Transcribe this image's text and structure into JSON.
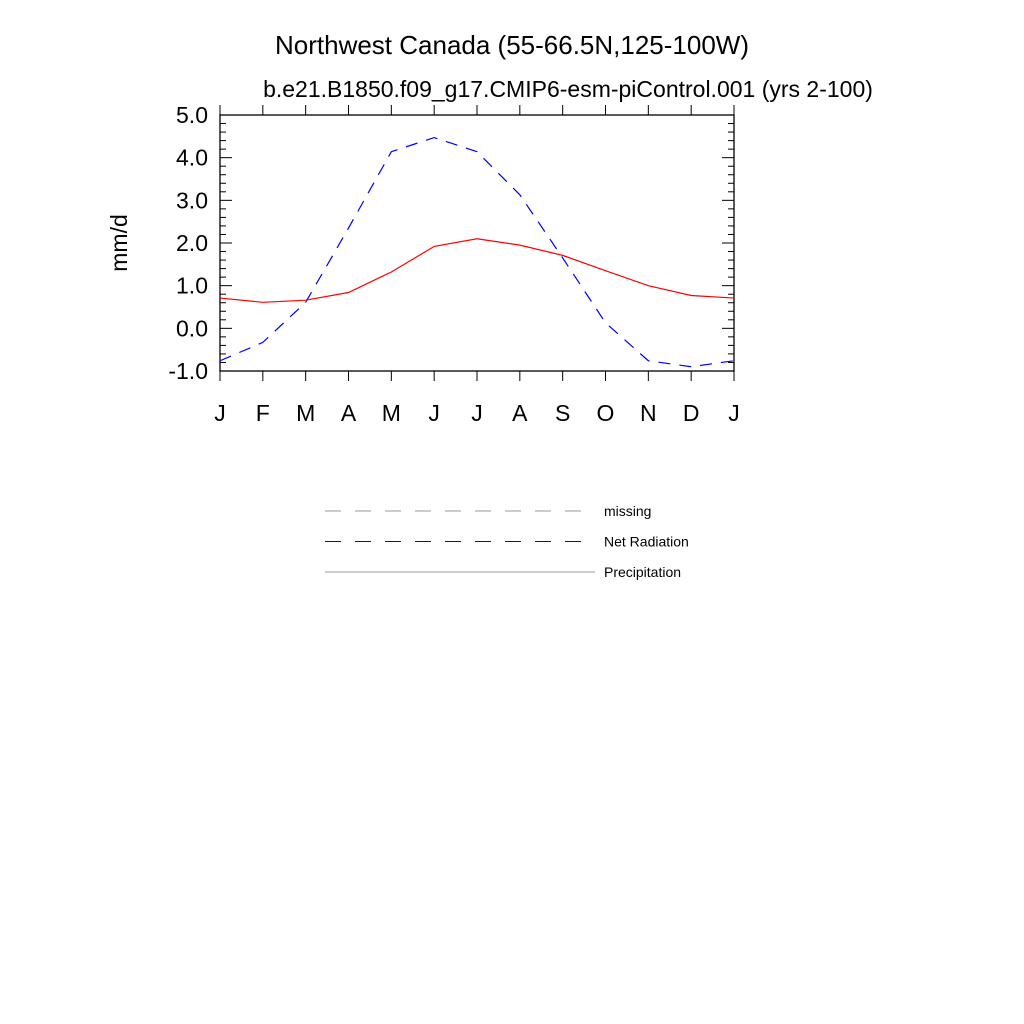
{
  "chart_data": {
    "type": "line",
    "title": "Northwest Canada (55-66.5N,125-100W)",
    "subtitle": "b.e21.B1850.f09_g17.CMIP6-esm-piControl.001 (yrs 2-100)",
    "xlabel": "",
    "ylabel": "mm/d",
    "categories": [
      "J",
      "F",
      "M",
      "A",
      "M",
      "J",
      "J",
      "A",
      "S",
      "O",
      "N",
      "D",
      "J"
    ],
    "ylim": [
      -1.0,
      5.0
    ],
    "yticks": [
      "-1.0",
      "0.0",
      "1.0",
      "2.0",
      "3.0",
      "4.0",
      "5.0"
    ],
    "grid": false,
    "legend_placement": "bottom",
    "series": [
      {
        "name": "Net Radiation",
        "color": "#0000ff",
        "style": "dashed",
        "values": [
          -0.76,
          -0.33,
          0.61,
          2.35,
          4.14,
          4.47,
          4.14,
          3.13,
          1.65,
          0.13,
          -0.76,
          -0.9,
          -0.76
        ]
      },
      {
        "name": "Precipitation",
        "color": "#ff0000",
        "style": "solid",
        "values": [
          0.71,
          0.61,
          0.66,
          0.84,
          1.32,
          1.92,
          2.1,
          1.95,
          1.71,
          1.35,
          1.0,
          0.77,
          0.71
        ]
      }
    ],
    "legend": [
      {
        "label": "missing",
        "color": "#999999",
        "style": "dashed"
      },
      {
        "label": "Net Radiation",
        "color": "#0000ff",
        "style": "dashed"
      },
      {
        "label": "Precipitation",
        "color": "#999999",
        "style": "solid"
      }
    ]
  }
}
